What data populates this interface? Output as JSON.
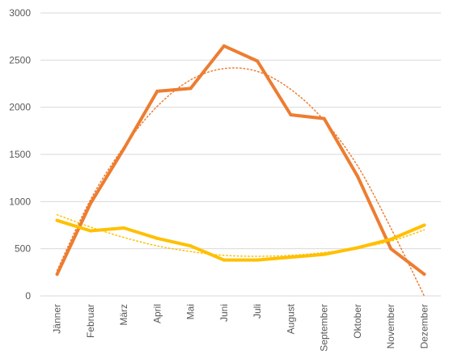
{
  "chart_data": {
    "type": "line",
    "categories": [
      "Jänner",
      "Februar",
      "März",
      "April",
      "Mai",
      "Juni",
      "Juli",
      "August",
      "September",
      "Oktober",
      "November",
      "Dezember"
    ],
    "ylim": [
      0,
      3000
    ],
    "yticks": [
      0,
      500,
      1000,
      1500,
      2000,
      2500,
      3000
    ],
    "grid": true,
    "legend": "none",
    "series": [
      {
        "color": "#ed7d31",
        "values": [
          230,
          980,
          1560,
          2170,
          2200,
          2650,
          2490,
          1920,
          1880,
          1270,
          500,
          230
        ],
        "trendline": {
          "type": "polynomial",
          "values": [
            270,
            1020,
            1580,
            2010,
            2290,
            2410,
            2380,
            2190,
            1860,
            1380,
            720,
            0
          ]
        }
      },
      {
        "color": "#ffc000",
        "values": [
          800,
          690,
          720,
          610,
          530,
          380,
          380,
          410,
          440,
          510,
          600,
          750
        ],
        "trendline": {
          "type": "polynomial",
          "values": [
            860,
            730,
            620,
            530,
            470,
            430,
            420,
            430,
            460,
            510,
            580,
            700
          ]
        }
      }
    ]
  }
}
